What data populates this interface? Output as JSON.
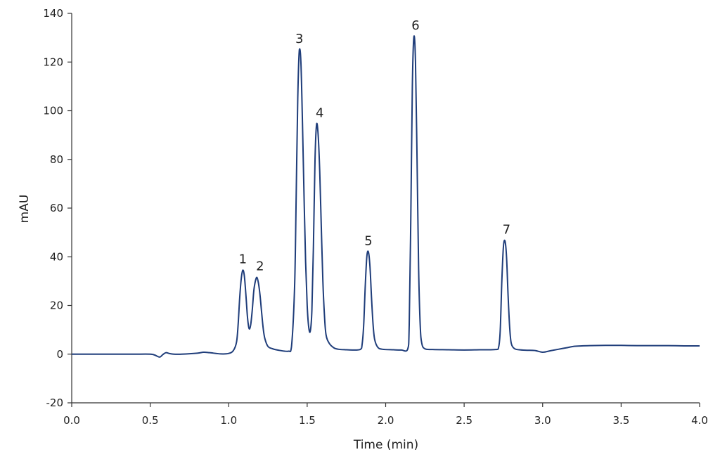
{
  "chart_data": {
    "type": "line",
    "title": "",
    "xlabel": "Time (min)",
    "ylabel": "mAU",
    "xlim": [
      0.0,
      4.0
    ],
    "ylim": [
      -20,
      140
    ],
    "x_ticks": [
      "0.0",
      "0.5",
      "1.0",
      "1.5",
      "2.0",
      "2.5",
      "3.0",
      "3.5",
      "4.0"
    ],
    "y_ticks": [
      "-20",
      "0",
      "20",
      "40",
      "60",
      "80",
      "100",
      "120",
      "140"
    ],
    "grid": false,
    "legend": "none",
    "line_color": "#1f3d7a",
    "series": [
      {
        "x": [
          0.0,
          0.1,
          0.2,
          0.3,
          0.4,
          0.5,
          0.53,
          0.56,
          0.58,
          0.6,
          0.62,
          0.65,
          0.7,
          0.8,
          0.84,
          0.88,
          0.95,
          1.0,
          1.03,
          1.05,
          1.06,
          1.07,
          1.08,
          1.09,
          1.1,
          1.11,
          1.12,
          1.13,
          1.14,
          1.15,
          1.16,
          1.17,
          1.18,
          1.19,
          1.2,
          1.21,
          1.22,
          1.23,
          1.25,
          1.28,
          1.32,
          1.38,
          1.4,
          1.42,
          1.43,
          1.44,
          1.45,
          1.46,
          1.47,
          1.48,
          1.49,
          1.5,
          1.51,
          1.52,
          1.53,
          1.54,
          1.55,
          1.56,
          1.57,
          1.58,
          1.59,
          1.6,
          1.61,
          1.62,
          1.64,
          1.67,
          1.7,
          1.75,
          1.8,
          1.84,
          1.85,
          1.86,
          1.87,
          1.88,
          1.89,
          1.9,
          1.91,
          1.92,
          1.93,
          1.95,
          1.98,
          2.05,
          2.1,
          2.14,
          2.15,
          2.16,
          2.17,
          2.18,
          2.19,
          2.2,
          2.21,
          2.22,
          2.23,
          2.25,
          2.3,
          2.4,
          2.5,
          2.6,
          2.7,
          2.72,
          2.73,
          2.74,
          2.75,
          2.76,
          2.77,
          2.78,
          2.79,
          2.8,
          2.82,
          2.85,
          2.9,
          2.95,
          3.0,
          3.05,
          3.1,
          3.15,
          3.2,
          3.25,
          3.3,
          3.4,
          3.5,
          3.6,
          3.7,
          3.8,
          3.9,
          4.0
        ],
        "y": [
          0,
          0,
          0,
          0,
          0,
          0,
          -0.4,
          -1.2,
          -0.2,
          0.6,
          0.3,
          0,
          0,
          0.4,
          0.8,
          0.6,
          0.1,
          0.3,
          1.5,
          5,
          12,
          23,
          31,
          34.5,
          32,
          24,
          15,
          10.5,
          12,
          18,
          26,
          30,
          31.5,
          29,
          24,
          17,
          10.5,
          6.5,
          3.2,
          2.2,
          1.6,
          1.2,
          3,
          28,
          65,
          105,
          125,
          120,
          95,
          65,
          38,
          20,
          11,
          9.5,
          18,
          45,
          80,
          94.5,
          90,
          75,
          52,
          30,
          16,
          8,
          4.5,
          2.6,
          2,
          1.8,
          1.7,
          2,
          4,
          12,
          28,
          40,
          42,
          36,
          23,
          12,
          6,
          2.8,
          2,
          1.8,
          1.7,
          2,
          12,
          55,
          110,
          130.5,
          120,
          80,
          35,
          12,
          4.5,
          2.2,
          1.9,
          1.8,
          1.7,
          1.8,
          1.9,
          3,
          10,
          30,
          44,
          46.5,
          40,
          24,
          11,
          4.5,
          2.3,
          1.8,
          1.6,
          1.5,
          0.8,
          1.4,
          2,
          2.6,
          3.2,
          3.4,
          3.5,
          3.6,
          3.6,
          3.5,
          3.5,
          3.5,
          3.4,
          3.4
        ]
      }
    ],
    "annotations": [
      {
        "text": "1",
        "x": 1.09,
        "y": 34.5
      },
      {
        "text": "2",
        "x": 1.2,
        "y": 31.5
      },
      {
        "text": "3",
        "x": 1.45,
        "y": 125
      },
      {
        "text": "4",
        "x": 1.58,
        "y": 94.5
      },
      {
        "text": "5",
        "x": 1.89,
        "y": 42
      },
      {
        "text": "6",
        "x": 2.19,
        "y": 130.5
      },
      {
        "text": "7",
        "x": 2.77,
        "y": 46.5
      }
    ]
  }
}
